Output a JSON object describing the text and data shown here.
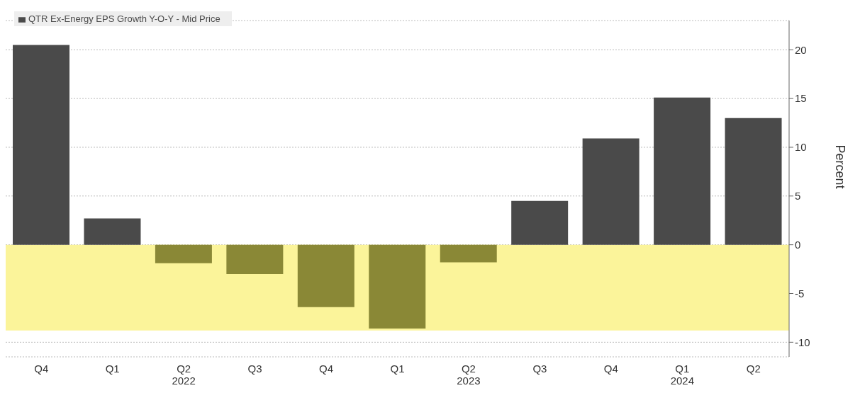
{
  "chart_data": {
    "type": "bar",
    "ylabel": "Percent",
    "categories": [
      "Q4",
      "Q1",
      "Q2\n2022",
      "Q3",
      "Q4",
      "Q1",
      "Q2\n2023",
      "Q3",
      "Q4",
      "Q1\n2024",
      "Q2"
    ],
    "series": [
      {
        "name": "QTR Ex-Energy EPS Growth Y-O-Y - Mid Price",
        "color": "#4a4a4a",
        "colors": [
          "#4a4a4a",
          "#4a4a4a",
          "#8a8836",
          "#8a8836",
          "#8a8836",
          "#8a8836",
          "#8a8836",
          "#4a4a4a",
          "#4a4a4a",
          "#4a4a4a",
          "#4a4a4a"
        ],
        "values": [
          20.5,
          2.7,
          -1.9,
          -3.0,
          -6.4,
          -8.6,
          -1.8,
          4.5,
          10.9,
          15.1,
          13.0
        ]
      }
    ],
    "ylim": [
      -11.5,
      23
    ],
    "yticks": [
      -10,
      -5,
      0,
      5,
      10,
      15,
      20
    ],
    "grid": "y",
    "legend": "top left",
    "bands": [
      {
        "axis": "y",
        "from": -8.8,
        "to": 0,
        "color": "#fbf49a"
      }
    ]
  }
}
